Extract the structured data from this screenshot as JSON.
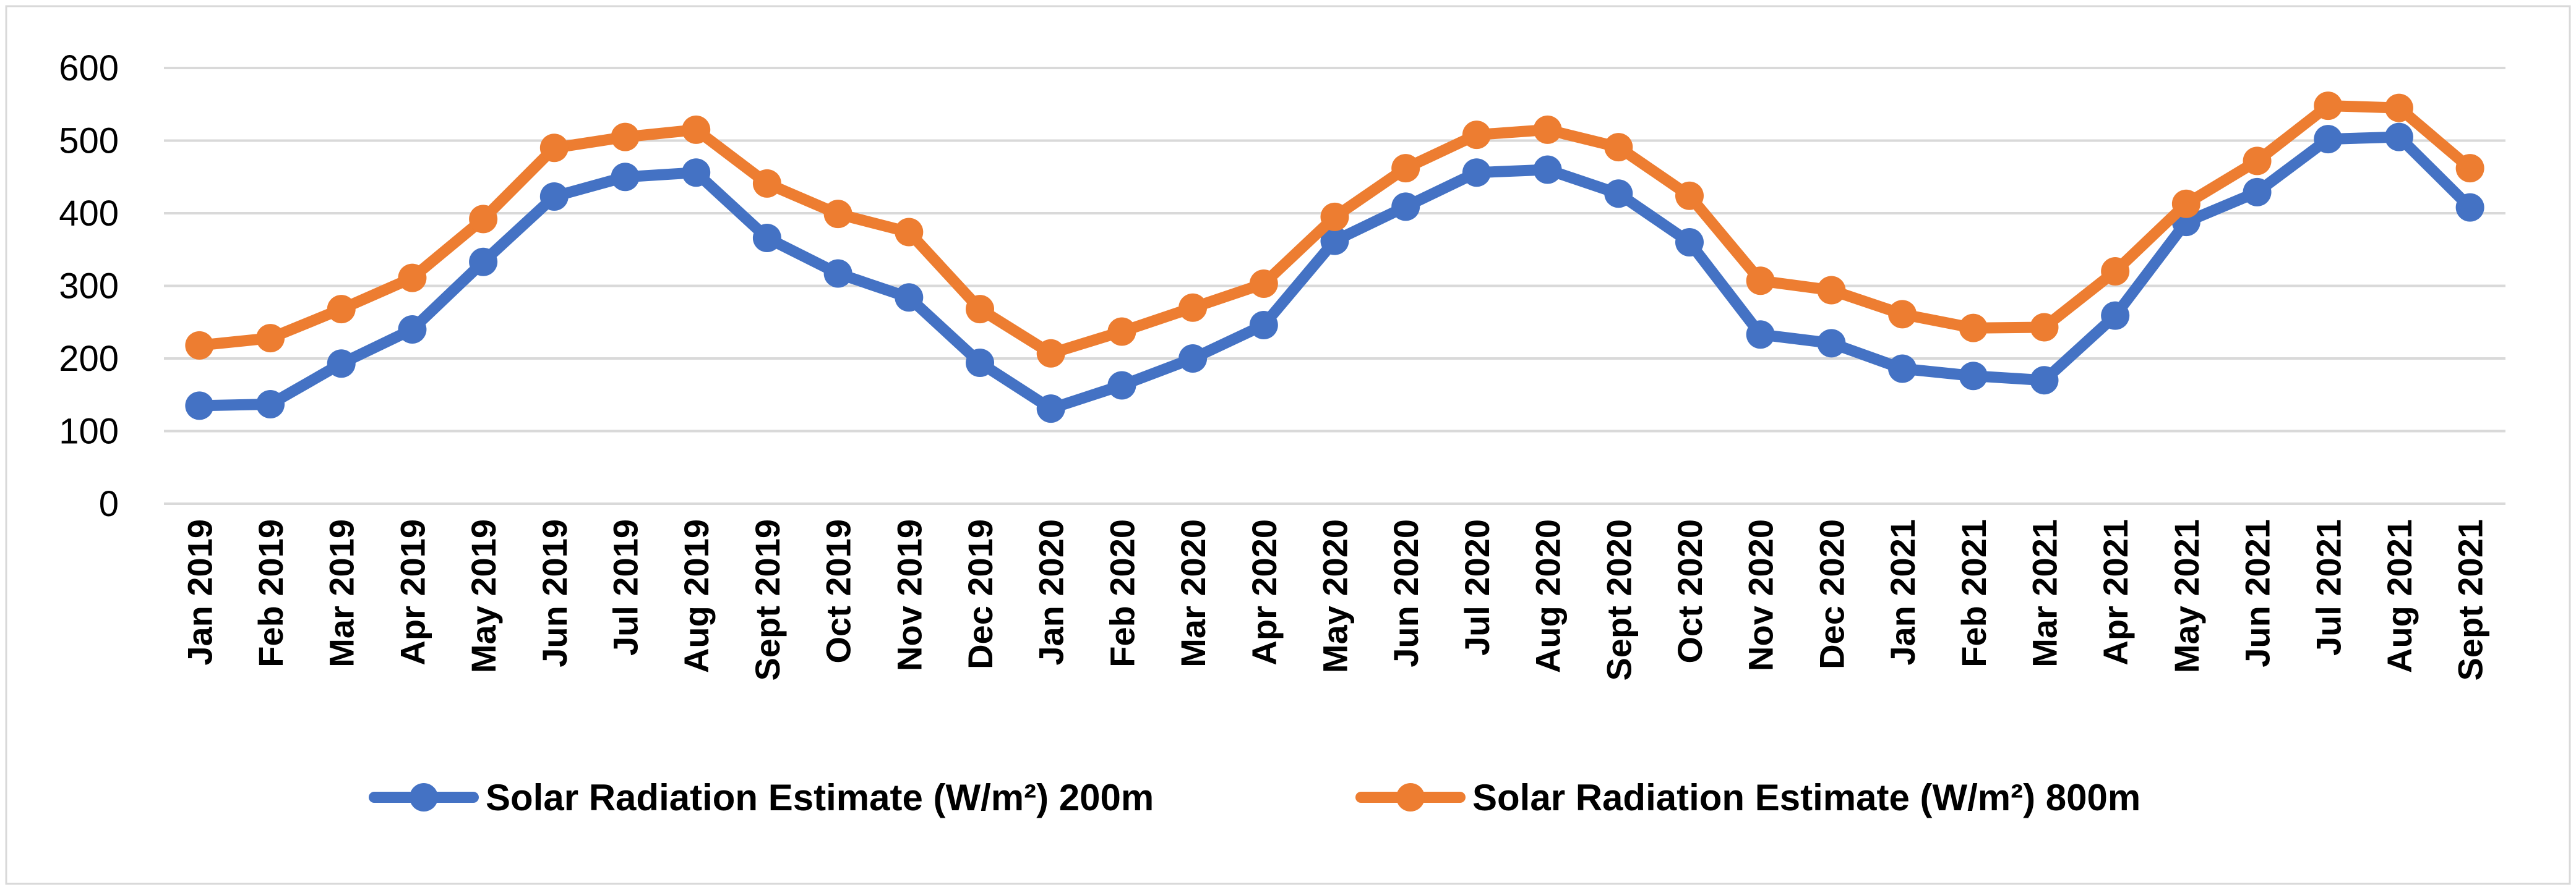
{
  "chart_data": {
    "type": "line",
    "title": "",
    "xlabel": "",
    "ylabel": "",
    "ylim": [
      0,
      600
    ],
    "yticks": [
      "0",
      "100",
      "200",
      "300",
      "400",
      "500",
      "600"
    ],
    "grid": true,
    "legend_position": "bottom",
    "categories": [
      "Jan 2019",
      "Feb 2019",
      "Mar 2019",
      "Apr 2019",
      "May 2019",
      "Jun 2019",
      "Jul 2019",
      "Aug 2019",
      "Sept 2019",
      "Oct 2019",
      "Nov 2019",
      "Dec 2019",
      "Jan 2020",
      "Feb 2020",
      "Mar 2020",
      "Apr 2020",
      "May 2020",
      "Jun 2020",
      "Jul 2020",
      "Aug 2020",
      "Sept 2020",
      "Oct 2020",
      "Nov 2020",
      "Dec 2020",
      "Jan 2021",
      "Feb 2021",
      "Mar 2021",
      "Apr 2021",
      "May 2021",
      "Jun 2021",
      "Jul 2021",
      "Aug 2021",
      "Sept 2021"
    ],
    "series": [
      {
        "name": "Solar Radiation Estimate (W/m²) 200m",
        "color": "#4472c4",
        "values": [
          135,
          137,
          193,
          240,
          333,
          423,
          450,
          456,
          366,
          317,
          284,
          194,
          131,
          163,
          200,
          246,
          362,
          409,
          456,
          460,
          427,
          360,
          233,
          221,
          186,
          176,
          170,
          259,
          388,
          429,
          502,
          505,
          408
        ]
      },
      {
        "name": "Solar Radiation Estimate (W/m²) 800m",
        "color": "#ed7d31",
        "values": [
          218,
          228,
          268,
          311,
          392,
          490,
          505,
          515,
          441,
          399,
          374,
          268,
          207,
          237,
          270,
          303,
          395,
          462,
          508,
          515,
          491,
          424,
          307,
          294,
          261,
          242,
          243,
          320,
          413,
          472,
          548,
          545,
          462
        ]
      }
    ]
  }
}
